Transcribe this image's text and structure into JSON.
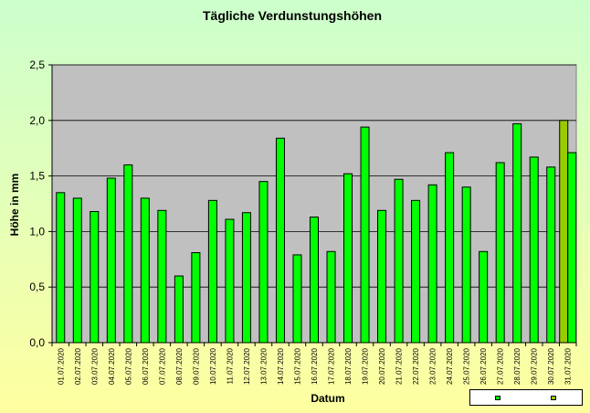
{
  "chart_data": {
    "type": "bar",
    "title": "Tägliche Verdunstungshöhen",
    "xlabel": "Datum",
    "ylabel": "Höhe in mm",
    "ylim": [
      0,
      2.5
    ],
    "yticks": [
      "0,0",
      "0,5",
      "1,0",
      "1,5",
      "2,0",
      "2,5"
    ],
    "grid": true,
    "legend_position": "bottom-right",
    "colors": {
      "plot_background": "#c0c0c0",
      "bar_fill": "#00ff00",
      "bar_fill_last_series": "#99cc00",
      "bar_stroke": "#000000"
    },
    "categories": [
      "01.07.2020",
      "02.07.2020",
      "03.07.2020",
      "04.07.2020",
      "05.07.2020",
      "06.07.2020",
      "07.07.2020",
      "08.07.2020",
      "09.07.2020",
      "10.07.2020",
      "11.07.2020",
      "12.07.2020",
      "13.07.2020",
      "14.07.2020",
      "15.07.2020",
      "16.07.2020",
      "17.07.2020",
      "18.07.2020",
      "19.07.2020",
      "20.07.2020",
      "21.07.2020",
      "22.07.2020",
      "23.07.2020",
      "24.07.2020",
      "25.07.2020",
      "26.07.2020",
      "27.07.2020",
      "28.07.2020",
      "29.07.2020",
      "30.07.2020",
      "31.07.2020"
    ],
    "series": [
      {
        "name": "",
        "values": [
          1.35,
          1.3,
          1.18,
          1.48,
          1.6,
          1.3,
          1.19,
          0.6,
          0.81,
          1.28,
          1.11,
          1.17,
          1.45,
          1.84,
          0.79,
          1.13,
          0.82,
          1.52,
          1.94,
          1.19,
          1.47,
          1.28,
          1.42,
          1.71,
          1.4,
          0.82,
          1.62,
          1.97,
          1.67,
          1.58,
          1.71
        ]
      }
    ],
    "extra_bar": {
      "category": "31.07.2020",
      "value": 2.0
    },
    "legend": [
      "",
      ""
    ]
  }
}
